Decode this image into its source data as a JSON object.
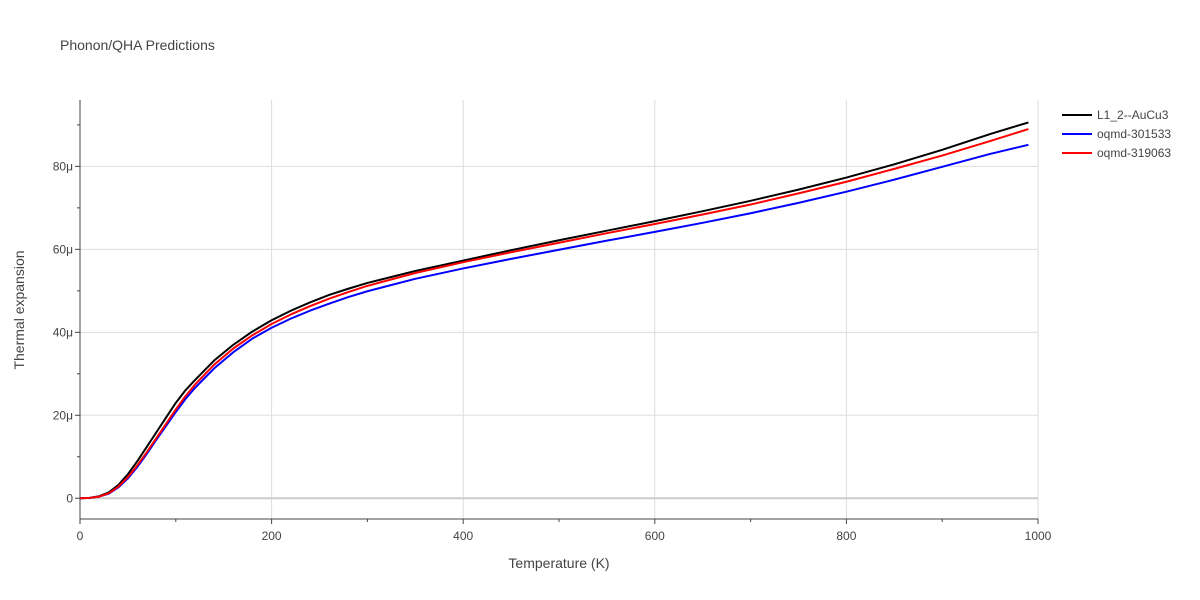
{
  "chart_data": {
    "type": "line",
    "title": "Phonon/QHA Predictions",
    "xlabel": "Temperature (K)",
    "ylabel": "Thermal expansion",
    "xlim": [
      0,
      1000
    ],
    "ylim": [
      -5,
      96
    ],
    "xticks": [
      0,
      200,
      400,
      600,
      800,
      1000
    ],
    "xtick_labels": [
      "0",
      "200",
      "400",
      "600",
      "800",
      "1000"
    ],
    "yticks": [
      0,
      20,
      40,
      60,
      80
    ],
    "ytick_labels": [
      "0",
      "20μ",
      "40μ",
      "60μ",
      "80μ"
    ],
    "grid": true,
    "legend_position": "top-right",
    "series": [
      {
        "name": "L1_2--AuCu3",
        "color": "#000000",
        "x": [
          0,
          10,
          20,
          30,
          40,
          50,
          60,
          70,
          80,
          90,
          100,
          110,
          120,
          140,
          160,
          180,
          200,
          220,
          240,
          260,
          280,
          300,
          350,
          400,
          450,
          500,
          550,
          600,
          650,
          700,
          750,
          800,
          850,
          900,
          950,
          990
        ],
        "y": [
          0,
          0.1,
          0.5,
          1.4,
          3.2,
          5.8,
          9.0,
          12.5,
          16.0,
          19.5,
          23.0,
          26.0,
          28.5,
          33.2,
          37.0,
          40.2,
          42.9,
          45.2,
          47.2,
          49.0,
          50.5,
          51.9,
          54.8,
          57.3,
          59.8,
          62.2,
          64.5,
          66.8,
          69.2,
          71.7,
          74.4,
          77.3,
          80.5,
          84.0,
          87.8,
          90.6
        ]
      },
      {
        "name": "oqmd-301533",
        "color": "#0000ff",
        "x": [
          0,
          10,
          20,
          30,
          40,
          50,
          60,
          70,
          80,
          90,
          100,
          110,
          120,
          140,
          160,
          180,
          200,
          220,
          240,
          260,
          280,
          300,
          350,
          400,
          450,
          500,
          550,
          600,
          650,
          700,
          750,
          800,
          850,
          900,
          950,
          990
        ],
        "y": [
          0,
          0.1,
          0.4,
          1.1,
          2.6,
          4.8,
          7.6,
          10.8,
          14.2,
          17.5,
          20.8,
          23.9,
          26.6,
          31.3,
          35.2,
          38.5,
          41.1,
          43.3,
          45.2,
          46.9,
          48.5,
          49.9,
          52.9,
          55.4,
          57.7,
          59.9,
          62.1,
          64.2,
          66.4,
          68.7,
          71.2,
          73.9,
          76.8,
          79.9,
          83.0,
          85.2
        ]
      },
      {
        "name": "oqmd-319063",
        "color": "#ff0000",
        "x": [
          0,
          10,
          20,
          30,
          40,
          50,
          60,
          70,
          80,
          90,
          100,
          110,
          120,
          140,
          160,
          180,
          200,
          220,
          240,
          260,
          280,
          300,
          350,
          400,
          450,
          500,
          550,
          600,
          650,
          700,
          750,
          800,
          850,
          900,
          950,
          990
        ],
        "y": [
          0,
          0.1,
          0.4,
          1.2,
          2.8,
          5.1,
          8.0,
          11.2,
          14.6,
          18.0,
          21.4,
          24.6,
          27.4,
          32.2,
          36.1,
          39.3,
          42.0,
          44.3,
          46.3,
          48.1,
          49.7,
          51.2,
          54.3,
          56.9,
          59.3,
          61.6,
          63.9,
          66.1,
          68.4,
          70.8,
          73.5,
          76.3,
          79.4,
          82.6,
          86.1,
          89.0
        ]
      }
    ]
  }
}
